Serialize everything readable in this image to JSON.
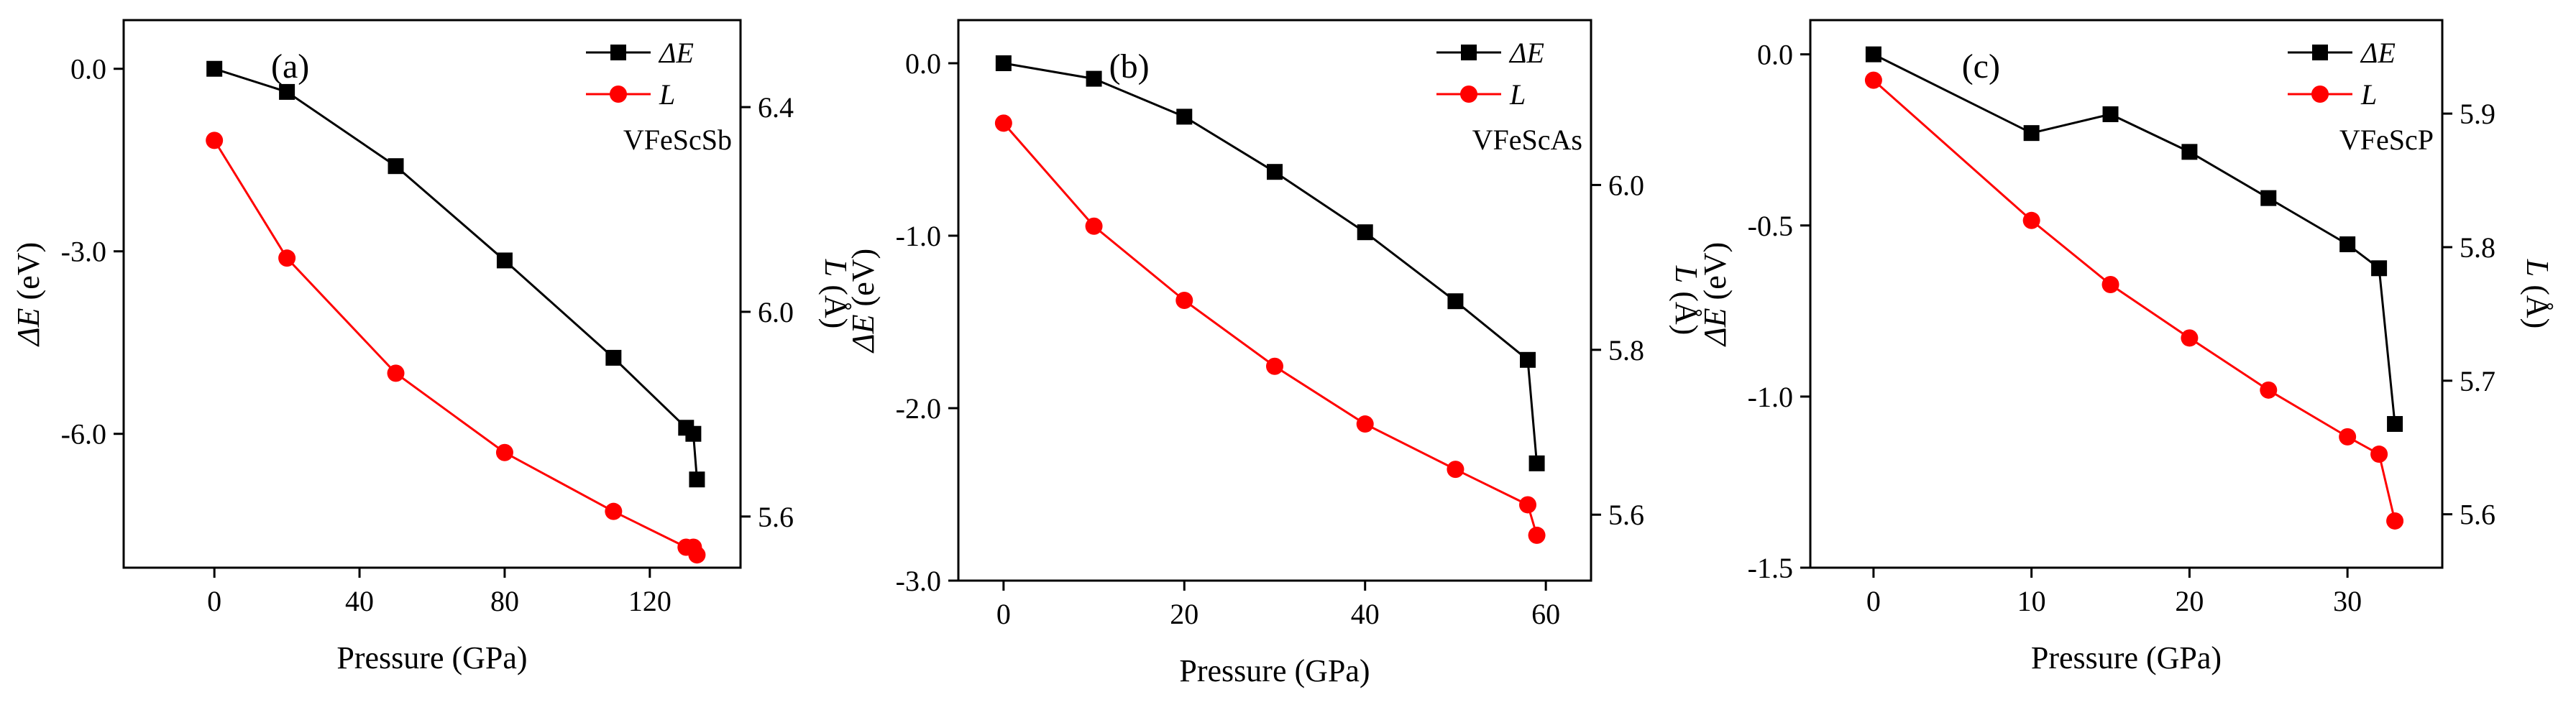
{
  "chart_data": [
    {
      "type": "line",
      "panel_label": "(a)",
      "sample_label": "VFeScSb",
      "xlabel": "Pressure (GPa)",
      "ylabel_left": "ΔE (eV)",
      "ylabel_right": "L (Å)",
      "xlim": [
        -25,
        145
      ],
      "xticks": [
        0,
        40,
        80,
        120
      ],
      "ylim_left": [
        -8.2,
        0.8
      ],
      "yticks_left": [
        0.0,
        -3.0,
        -6.0
      ],
      "ylim_right": [
        5.5,
        6.57
      ],
      "yticks_right": [
        5.6,
        6.0,
        6.4
      ],
      "legend_position": "top-right",
      "series": [
        {
          "name": "ΔE",
          "axis": "left",
          "color": "#000000",
          "marker": "square",
          "x": [
            0,
            20,
            50,
            80,
            110,
            130,
            132,
            133
          ],
          "y": [
            0.0,
            -0.38,
            -1.6,
            -3.15,
            -4.75,
            -5.9,
            -6.0,
            -6.75
          ]
        },
        {
          "name": "L",
          "axis": "right",
          "color": "#ff0000",
          "marker": "circle",
          "x": [
            0,
            20,
            50,
            80,
            110,
            130,
            132,
            133
          ],
          "y": [
            6.335,
            6.105,
            5.88,
            5.725,
            5.61,
            5.54,
            5.54,
            5.525
          ]
        }
      ]
    },
    {
      "type": "line",
      "panel_label": "(b)",
      "sample_label": "VFeScAs",
      "xlabel": "Pressure (GPa)",
      "ylabel_left": "ΔE (eV)",
      "ylabel_right": "L (Å)",
      "xlim": [
        -5,
        65
      ],
      "xticks": [
        0,
        20,
        40,
        60
      ],
      "ylim_left": [
        -3.0,
        0.25
      ],
      "yticks_left": [
        0.0,
        -1.0,
        -2.0,
        -3.0
      ],
      "ylim_right": [
        5.52,
        6.2
      ],
      "yticks_right": [
        5.6,
        5.8,
        6.0
      ],
      "legend_position": "top-right",
      "series": [
        {
          "name": "ΔE",
          "axis": "left",
          "color": "#000000",
          "marker": "square",
          "x": [
            0,
            10,
            20,
            30,
            40,
            50,
            58,
            59
          ],
          "y": [
            0.0,
            -0.09,
            -0.31,
            -0.63,
            -0.98,
            -1.38,
            -1.72,
            -2.32
          ]
        },
        {
          "name": "L",
          "axis": "right",
          "color": "#ff0000",
          "marker": "circle",
          "x": [
            0,
            10,
            20,
            30,
            40,
            50,
            58,
            59
          ],
          "y": [
            6.075,
            5.95,
            5.86,
            5.78,
            5.71,
            5.655,
            5.612,
            5.575
          ]
        }
      ]
    },
    {
      "type": "line",
      "panel_label": "(c)",
      "sample_label": "VFeScP",
      "xlabel": "Pressure (GPa)",
      "ylabel_left": "ΔE (eV)",
      "ylabel_right": "L (Å)",
      "xlim": [
        -4,
        36
      ],
      "xticks": [
        0,
        10,
        20,
        30
      ],
      "ylim_left": [
        -1.5,
        0.1
      ],
      "yticks_left": [
        0.0,
        -0.5,
        -1.0,
        -1.5
      ],
      "ylim_right": [
        5.56,
        5.97
      ],
      "yticks_right": [
        5.6,
        5.7,
        5.8,
        5.9
      ],
      "legend_position": "top-right",
      "series": [
        {
          "name": "ΔE",
          "axis": "left",
          "color": "#000000",
          "marker": "square",
          "x": [
            0,
            10,
            15,
            20,
            25,
            30,
            32,
            33
          ],
          "y": [
            0.0,
            -0.23,
            -0.175,
            -0.285,
            -0.42,
            -0.555,
            -0.625,
            -1.08
          ]
        },
        {
          "name": "L",
          "axis": "right",
          "color": "#ff0000",
          "marker": "circle",
          "x": [
            0,
            10,
            15,
            20,
            25,
            30,
            32,
            33
          ],
          "y": [
            5.925,
            5.82,
            5.772,
            5.732,
            5.693,
            5.658,
            5.645,
            5.595
          ]
        }
      ]
    }
  ]
}
